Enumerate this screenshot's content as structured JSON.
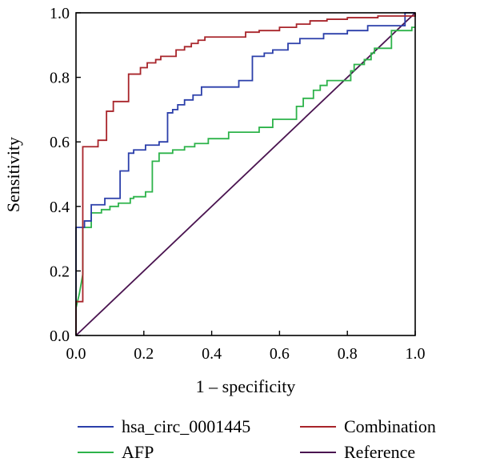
{
  "chart_data": {
    "type": "line",
    "xlabel": "1 – specificity",
    "ylabel": "Sensitivity",
    "xlim": [
      0,
      1
    ],
    "ylim": [
      0,
      1
    ],
    "x_ticks": [
      "0.0",
      "0.2",
      "0.4",
      "0.6",
      "0.8",
      "1.0"
    ],
    "y_ticks": [
      "0.0",
      "0.2",
      "0.4",
      "0.6",
      "0.8",
      "1.0"
    ],
    "grid": false,
    "legend_position": "bottom",
    "series": [
      {
        "name": "hsa_circ_0001445",
        "color": "#2b3faa",
        "points": [
          [
            0,
            0
          ],
          [
            0,
            0.335
          ],
          [
            0.025,
            0.335
          ],
          [
            0.025,
            0.355
          ],
          [
            0.045,
            0.355
          ],
          [
            0.045,
            0.405
          ],
          [
            0.085,
            0.405
          ],
          [
            0.085,
            0.425
          ],
          [
            0.13,
            0.425
          ],
          [
            0.13,
            0.51
          ],
          [
            0.155,
            0.51
          ],
          [
            0.155,
            0.565
          ],
          [
            0.17,
            0.565
          ],
          [
            0.17,
            0.575
          ],
          [
            0.205,
            0.575
          ],
          [
            0.205,
            0.59
          ],
          [
            0.245,
            0.59
          ],
          [
            0.245,
            0.6
          ],
          [
            0.27,
            0.6
          ],
          [
            0.27,
            0.69
          ],
          [
            0.285,
            0.69
          ],
          [
            0.285,
            0.7
          ],
          [
            0.3,
            0.7
          ],
          [
            0.3,
            0.715
          ],
          [
            0.32,
            0.715
          ],
          [
            0.32,
            0.73
          ],
          [
            0.345,
            0.73
          ],
          [
            0.345,
            0.745
          ],
          [
            0.37,
            0.745
          ],
          [
            0.37,
            0.77
          ],
          [
            0.48,
            0.77
          ],
          [
            0.48,
            0.79
          ],
          [
            0.52,
            0.79
          ],
          [
            0.52,
            0.865
          ],
          [
            0.555,
            0.865
          ],
          [
            0.555,
            0.875
          ],
          [
            0.58,
            0.875
          ],
          [
            0.58,
            0.885
          ],
          [
            0.625,
            0.885
          ],
          [
            0.625,
            0.905
          ],
          [
            0.66,
            0.905
          ],
          [
            0.66,
            0.92
          ],
          [
            0.73,
            0.92
          ],
          [
            0.73,
            0.935
          ],
          [
            0.8,
            0.935
          ],
          [
            0.8,
            0.945
          ],
          [
            0.86,
            0.945
          ],
          [
            0.86,
            0.96
          ],
          [
            0.97,
            0.96
          ],
          [
            0.97,
            1.0
          ],
          [
            1.0,
            1.0
          ]
        ]
      },
      {
        "name": "AFP",
        "color": "#2db34a",
        "points": [
          [
            0,
            0
          ],
          [
            0,
            0.085
          ],
          [
            0.01,
            0.13
          ],
          [
            0.02,
            0.19
          ],
          [
            0.02,
            0.335
          ],
          [
            0.045,
            0.335
          ],
          [
            0.045,
            0.38
          ],
          [
            0.075,
            0.38
          ],
          [
            0.075,
            0.39
          ],
          [
            0.1,
            0.39
          ],
          [
            0.1,
            0.4
          ],
          [
            0.125,
            0.4
          ],
          [
            0.125,
            0.41
          ],
          [
            0.16,
            0.41
          ],
          [
            0.16,
            0.425
          ],
          [
            0.17,
            0.425
          ],
          [
            0.17,
            0.43
          ],
          [
            0.205,
            0.43
          ],
          [
            0.205,
            0.445
          ],
          [
            0.225,
            0.445
          ],
          [
            0.225,
            0.54
          ],
          [
            0.245,
            0.54
          ],
          [
            0.245,
            0.565
          ],
          [
            0.285,
            0.565
          ],
          [
            0.285,
            0.575
          ],
          [
            0.32,
            0.575
          ],
          [
            0.32,
            0.585
          ],
          [
            0.35,
            0.585
          ],
          [
            0.35,
            0.595
          ],
          [
            0.39,
            0.595
          ],
          [
            0.39,
            0.61
          ],
          [
            0.45,
            0.61
          ],
          [
            0.45,
            0.63
          ],
          [
            0.54,
            0.63
          ],
          [
            0.54,
            0.645
          ],
          [
            0.58,
            0.645
          ],
          [
            0.58,
            0.67
          ],
          [
            0.65,
            0.67
          ],
          [
            0.65,
            0.71
          ],
          [
            0.67,
            0.71
          ],
          [
            0.67,
            0.735
          ],
          [
            0.7,
            0.735
          ],
          [
            0.7,
            0.76
          ],
          [
            0.72,
            0.76
          ],
          [
            0.72,
            0.775
          ],
          [
            0.74,
            0.775
          ],
          [
            0.74,
            0.79
          ],
          [
            0.81,
            0.79
          ],
          [
            0.81,
            0.82
          ],
          [
            0.82,
            0.82
          ],
          [
            0.82,
            0.84
          ],
          [
            0.85,
            0.84
          ],
          [
            0.85,
            0.855
          ],
          [
            0.87,
            0.855
          ],
          [
            0.87,
            0.875
          ],
          [
            0.88,
            0.875
          ],
          [
            0.88,
            0.89
          ],
          [
            0.93,
            0.89
          ],
          [
            0.93,
            0.945
          ],
          [
            0.99,
            0.945
          ],
          [
            0.99,
            0.955
          ],
          [
            1.0,
            0.955
          ]
        ]
      },
      {
        "name": "Combination",
        "color": "#a8242a",
        "points": [
          [
            0,
            0
          ],
          [
            0,
            0.105
          ],
          [
            0.02,
            0.105
          ],
          [
            0.02,
            0.585
          ],
          [
            0.065,
            0.585
          ],
          [
            0.065,
            0.605
          ],
          [
            0.09,
            0.605
          ],
          [
            0.09,
            0.695
          ],
          [
            0.11,
            0.695
          ],
          [
            0.11,
            0.725
          ],
          [
            0.155,
            0.725
          ],
          [
            0.155,
            0.81
          ],
          [
            0.19,
            0.81
          ],
          [
            0.19,
            0.83
          ],
          [
            0.21,
            0.83
          ],
          [
            0.21,
            0.845
          ],
          [
            0.235,
            0.845
          ],
          [
            0.235,
            0.855
          ],
          [
            0.25,
            0.855
          ],
          [
            0.25,
            0.865
          ],
          [
            0.295,
            0.865
          ],
          [
            0.295,
            0.885
          ],
          [
            0.32,
            0.885
          ],
          [
            0.32,
            0.895
          ],
          [
            0.34,
            0.895
          ],
          [
            0.34,
            0.905
          ],
          [
            0.36,
            0.905
          ],
          [
            0.36,
            0.915
          ],
          [
            0.38,
            0.915
          ],
          [
            0.38,
            0.925
          ],
          [
            0.5,
            0.925
          ],
          [
            0.5,
            0.94
          ],
          [
            0.54,
            0.94
          ],
          [
            0.54,
            0.945
          ],
          [
            0.6,
            0.945
          ],
          [
            0.6,
            0.955
          ],
          [
            0.65,
            0.955
          ],
          [
            0.65,
            0.965
          ],
          [
            0.69,
            0.965
          ],
          [
            0.69,
            0.975
          ],
          [
            0.74,
            0.975
          ],
          [
            0.74,
            0.98
          ],
          [
            0.8,
            0.98
          ],
          [
            0.8,
            0.985
          ],
          [
            0.89,
            0.985
          ],
          [
            0.89,
            0.99
          ],
          [
            1.0,
            0.99
          ],
          [
            1.0,
            1.0
          ]
        ]
      },
      {
        "name": "Reference",
        "color": "#4a1450",
        "points": [
          [
            0,
            0
          ],
          [
            1,
            1
          ]
        ]
      }
    ]
  }
}
